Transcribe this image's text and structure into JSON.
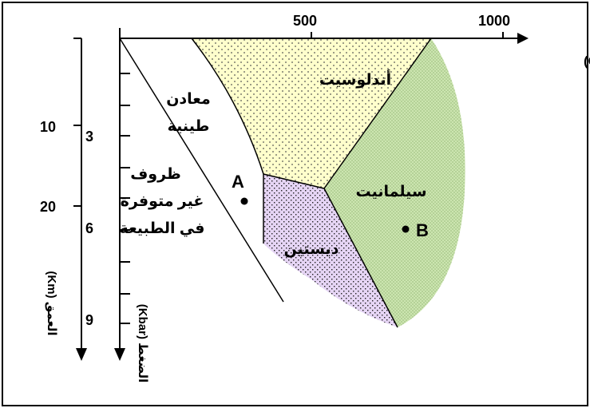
{
  "temperature": {
    "ticks": [
      "500",
      "1000"
    ],
    "label": "الحرارة (°C)"
  },
  "depth": {
    "ticks": [
      "10",
      "20"
    ],
    "label": "العمق (Km)"
  },
  "pressure": {
    "ticks": [
      "3",
      "6",
      "9"
    ],
    "label": "الضغط (Kbar)"
  },
  "regions": {
    "andalusite": "أندلوسيت",
    "sillimanite": "سيلمانيت",
    "kyanite": "ديستين",
    "clay_line1": "معادن",
    "clay_line2": "طينية",
    "impossible_line1": "ظروف",
    "impossible_line2": "غير متوفرة",
    "impossible_line3": "في الطبيعة"
  },
  "points": {
    "a": "A",
    "b": "B"
  },
  "colors": {
    "andalusite": "#ffffcc",
    "sillimanite": "#cce5b0",
    "kyanite": "#e6d5f5"
  }
}
